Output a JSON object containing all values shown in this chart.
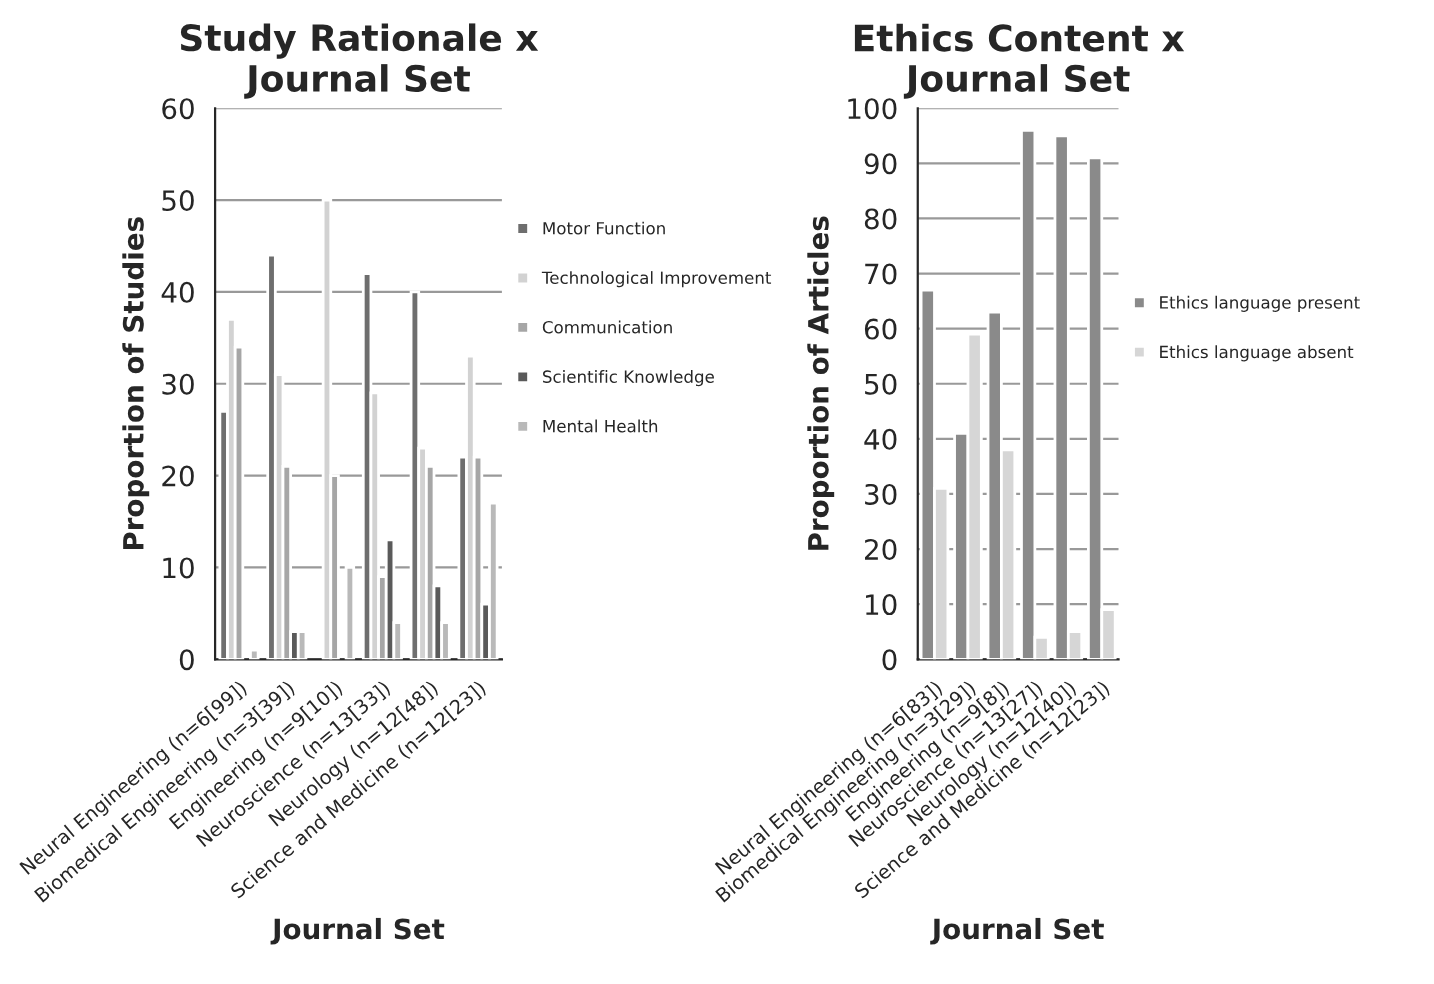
{
  "chart_data": [
    {
      "type": "bar",
      "title": "Study Rationale x\nJournal Set",
      "xlabel": "Journal Set",
      "ylabel": "Proportion of Studies",
      "categories": [
        "Neural Engineering (n=6[99])",
        "Biomedical Engineering (n=3[39])",
        "Engineering (n=9[10])",
        "Neuroscience (n=13[33])",
        "Neurology (n=12[48])",
        "Science and Medicine (n=12[23])"
      ],
      "series": [
        {
          "name": "Motor Function",
          "color": "#6e6e6e",
          "values": [
            27,
            44,
            null,
            42,
            40,
            22
          ]
        },
        {
          "name": "Technological Improvement",
          "color": "#d2d2d2",
          "values": [
            37,
            31,
            50,
            29,
            23,
            33
          ]
        },
        {
          "name": "Communication",
          "color": "#a6a6a6",
          "values": [
            34,
            21,
            20,
            9,
            21,
            22
          ]
        },
        {
          "name": "Scientific Knowledge",
          "color": "#5a5a5a",
          "values": [
            null,
            3,
            null,
            13,
            8,
            6
          ]
        },
        {
          "name": "Mental Health",
          "color": "#b9b9b9",
          "values": [
            1,
            3,
            10,
            4,
            4,
            17
          ]
        }
      ],
      "ylim": [
        0,
        60
      ],
      "yticks": [
        0,
        10,
        20,
        30,
        40,
        50,
        60
      ],
      "grid": "y",
      "legend": "right"
    },
    {
      "type": "bar",
      "title": "Ethics Content x\nJournal Set",
      "xlabel": "Journal Set",
      "ylabel": "Proportion of Articles",
      "categories": [
        "Neural Engineering (n=6[83])",
        "Biomedical Engineering (n=3[29])",
        "Engineering (n=9[8])",
        "Neuroscience (n=13[27])",
        "Neurology (n=12[40])",
        "Science and Medicine (n=12[23])"
      ],
      "series": [
        {
          "name": "Ethics language present",
          "color": "#8a8a8a",
          "values": [
            67,
            41,
            63,
            96,
            95,
            91
          ]
        },
        {
          "name": "Ethics language absent",
          "color": "#d6d6d6",
          "values": [
            31,
            59,
            38,
            4,
            5,
            9
          ]
        }
      ],
      "ylim": [
        0,
        100
      ],
      "yticks": [
        0,
        10,
        20,
        30,
        40,
        50,
        60,
        70,
        80,
        90,
        100
      ],
      "grid": "y",
      "legend": "right"
    }
  ]
}
